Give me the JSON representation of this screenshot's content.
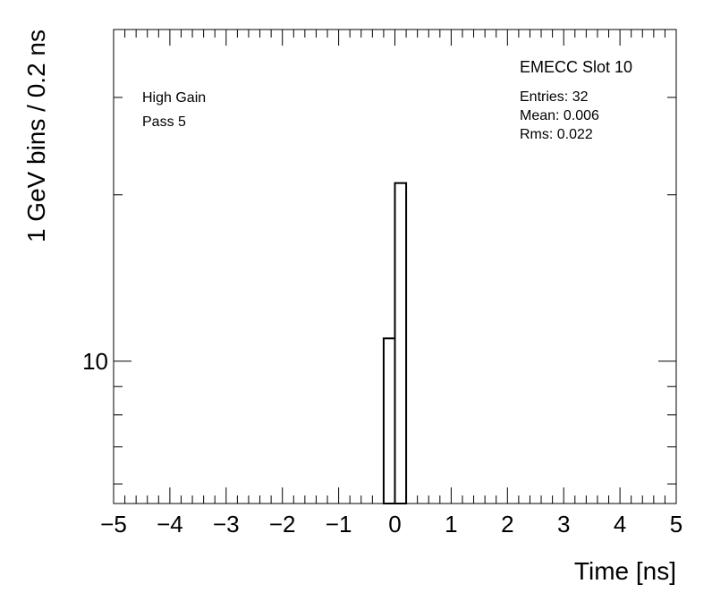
{
  "chart_data": {
    "type": "histogram",
    "y_label": "1 GeV bins / 0.2 ns",
    "x_label": "Time [ns]",
    "bins": [
      -0.2,
      0,
      0.2
    ],
    "values": [
      11,
      21
    ],
    "color": "#000000",
    "xlim": [
      -5,
      5
    ],
    "xticks": [
      {
        "value": -5,
        "label": "−5"
      },
      {
        "value": -4,
        "label": "−4"
      },
      {
        "value": -3,
        "label": "−3"
      },
      {
        "value": -2,
        "label": "−2"
      },
      {
        "value": -1,
        "label": "−1"
      },
      0,
      1,
      2,
      3,
      4,
      5
    ],
    "ylim": [
      5.53,
      39.8
    ],
    "yticks": [
      10
    ],
    "log_y": true,
    "annotations": [
      "High Gain",
      "Pass 5"
    ],
    "stats_title": "EMECC Slot 10",
    "stats": [
      "Entries: 32",
      "Mean: 0.006",
      "Rms: 0.022"
    ]
  }
}
